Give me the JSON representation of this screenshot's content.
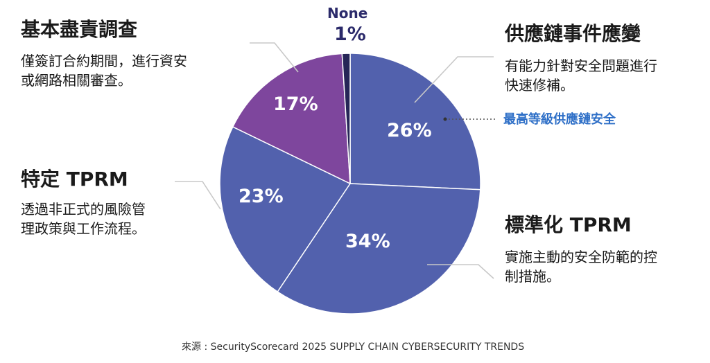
{
  "chart_data": {
    "type": "pie",
    "slices": [
      {
        "label": "供應鏈事件應變",
        "value": 26,
        "pct_label": "26%",
        "color": "#5261ad",
        "desc": [
          "有能力針對安全問題進行",
          "快速修補。"
        ],
        "highlight": "最高等級供應鏈安全"
      },
      {
        "label": "標準化 TPRM",
        "value": 34,
        "pct_label": "34%",
        "color": "#5261ad",
        "desc": [
          "實施主動的安全防範的控",
          "制措施。"
        ]
      },
      {
        "label": "特定 TPRM",
        "value": 23,
        "pct_label": "23%",
        "color": "#5261ad",
        "desc": [
          "透過非正式的風險管",
          "理政策與工作流程。"
        ]
      },
      {
        "label": "基本盡責調查",
        "value": 17,
        "pct_label": "17%",
        "color": "#7e469d",
        "desc": [
          "僅簽訂合約期間，進行資安",
          "或網路相關審查。"
        ]
      },
      {
        "label": "None",
        "value": 1,
        "pct_label": "1%",
        "color": "#262657",
        "desc": []
      }
    ],
    "source": "來源 : SecurityScorecard  2025 SUPPLY CHAIN CYBERSECURITY TRENDS"
  }
}
